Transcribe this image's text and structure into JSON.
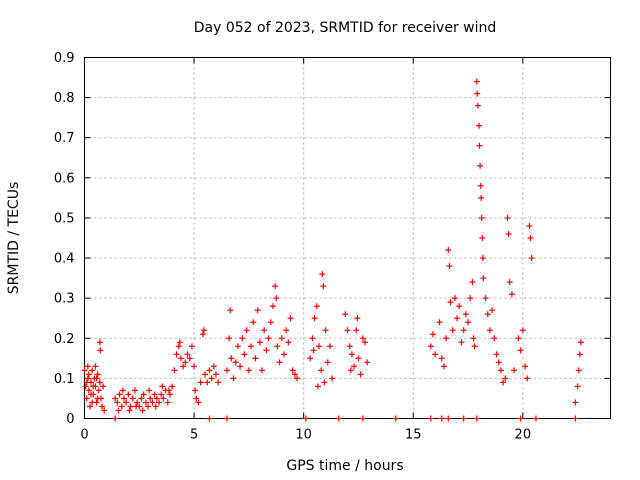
{
  "chart_data": {
    "type": "scatter",
    "title": "Day 052 of 2023, SRMTID for receiver wind",
    "xlabel": "GPS time / hours",
    "ylabel": "SRMTID / TECUs",
    "xlim": [
      0,
      24
    ],
    "ylim": [
      0,
      0.9
    ],
    "xticks": [
      0,
      5,
      10,
      15,
      20
    ],
    "xtick_labels": [
      "0",
      "5",
      "10",
      "15",
      "20"
    ],
    "yticks": [
      0,
      0.1,
      0.2,
      0.3,
      0.4,
      0.5,
      0.6,
      0.7,
      0.8,
      0.9
    ],
    "ytick_labels": [
      "0",
      "0.1",
      "0.2",
      "0.3",
      "0.4",
      "0.5",
      "0.6",
      "0.7",
      "0.8",
      "0.9"
    ],
    "grid": true,
    "marker": "+",
    "color": "#ff0000",
    "series": [
      {
        "name": "SRMTID",
        "points": [
          [
            0.0,
            0.12
          ],
          [
            0.05,
            0.08
          ],
          [
            0.1,
            0.05
          ],
          [
            0.15,
            0.1
          ],
          [
            0.2,
            0.07
          ],
          [
            0.25,
            0.03
          ],
          [
            0.3,
            0.09
          ],
          [
            0.35,
            0.12
          ],
          [
            0.4,
            0.06
          ],
          [
            0.45,
            0.1
          ],
          [
            0.5,
            0.08
          ],
          [
            0.55,
            0.04
          ],
          [
            0.6,
            0.11
          ],
          [
            0.65,
            0.07
          ],
          [
            0.7,
            0.19
          ],
          [
            0.72,
            0.17
          ],
          [
            0.75,
            0.05
          ],
          [
            0.8,
            0.03
          ],
          [
            0.85,
            0.08
          ],
          [
            0.9,
            0.02
          ],
          [
            0.1,
            0.09
          ],
          [
            0.2,
            0.11
          ],
          [
            0.3,
            0.06
          ],
          [
            0.4,
            0.08
          ],
          [
            0.5,
            0.13
          ],
          [
            0.6,
            0.05
          ],
          [
            0.7,
            0.09
          ],
          [
            0.15,
            0.13
          ],
          [
            0.35,
            0.04
          ],
          [
            0.55,
            0.1
          ],
          [
            1.4,
            0.05
          ],
          [
            1.5,
            0.04
          ],
          [
            1.6,
            0.06
          ],
          [
            1.7,
            0.03
          ],
          [
            1.8,
            0.05
          ],
          [
            1.9,
            0.04
          ],
          [
            2.0,
            0.06
          ],
          [
            2.1,
            0.03
          ],
          [
            2.2,
            0.05
          ],
          [
            2.3,
            0.07
          ],
          [
            2.4,
            0.04
          ],
          [
            2.5,
            0.03
          ],
          [
            2.6,
            0.05
          ],
          [
            2.7,
            0.06
          ],
          [
            2.8,
            0.04
          ],
          [
            2.9,
            0.03
          ],
          [
            3.0,
            0.05
          ],
          [
            3.1,
            0.04
          ],
          [
            3.2,
            0.06
          ],
          [
            3.3,
            0.05
          ],
          [
            3.4,
            0.04
          ],
          [
            3.5,
            0.06
          ],
          [
            3.6,
            0.05
          ],
          [
            3.7,
            0.07
          ],
          [
            3.8,
            0.04
          ],
          [
            3.9,
            0.06
          ],
          [
            1.55,
            0.02
          ],
          [
            1.75,
            0.07
          ],
          [
            2.05,
            0.02
          ],
          [
            2.35,
            0.03
          ],
          [
            2.65,
            0.02
          ],
          [
            2.95,
            0.07
          ],
          [
            3.25,
            0.03
          ],
          [
            3.55,
            0.08
          ],
          [
            3.85,
            0.07
          ],
          [
            4.0,
            0.08
          ],
          [
            4.1,
            0.12
          ],
          [
            4.2,
            0.16
          ],
          [
            4.3,
            0.18
          ],
          [
            4.35,
            0.19
          ],
          [
            4.4,
            0.15
          ],
          [
            4.5,
            0.13
          ],
          [
            4.6,
            0.14
          ],
          [
            4.7,
            0.16
          ],
          [
            4.8,
            0.15
          ],
          [
            4.9,
            0.18
          ],
          [
            5.0,
            0.13
          ],
          [
            5.05,
            0.07
          ],
          [
            5.1,
            0.05
          ],
          [
            5.2,
            0.04
          ],
          [
            5.3,
            0.09
          ],
          [
            5.4,
            0.21
          ],
          [
            5.45,
            0.22
          ],
          [
            5.5,
            0.11
          ],
          [
            5.6,
            0.09
          ],
          [
            5.7,
            0.12
          ],
          [
            5.8,
            0.1
          ],
          [
            5.9,
            0.13
          ],
          [
            6.0,
            0.11
          ],
          [
            6.1,
            0.09
          ],
          [
            6.5,
            0.12
          ],
          [
            6.6,
            0.2
          ],
          [
            6.65,
            0.27
          ],
          [
            6.7,
            0.15
          ],
          [
            6.8,
            0.1
          ],
          [
            6.9,
            0.14
          ],
          [
            7.0,
            0.18
          ],
          [
            7.1,
            0.13
          ],
          [
            7.2,
            0.2
          ],
          [
            7.3,
            0.16
          ],
          [
            7.4,
            0.22
          ],
          [
            7.5,
            0.12
          ],
          [
            7.6,
            0.18
          ],
          [
            7.7,
            0.24
          ],
          [
            7.8,
            0.15
          ],
          [
            7.9,
            0.27
          ],
          [
            8.0,
            0.19
          ],
          [
            8.1,
            0.12
          ],
          [
            8.2,
            0.22
          ],
          [
            8.3,
            0.17
          ],
          [
            8.4,
            0.2
          ],
          [
            8.5,
            0.24
          ],
          [
            8.6,
            0.28
          ],
          [
            8.7,
            0.33
          ],
          [
            8.75,
            0.3
          ],
          [
            8.8,
            0.18
          ],
          [
            8.9,
            0.14
          ],
          [
            9.0,
            0.2
          ],
          [
            9.1,
            0.16
          ],
          [
            9.2,
            0.22
          ],
          [
            9.3,
            0.19
          ],
          [
            9.4,
            0.25
          ],
          [
            9.5,
            0.12
          ],
          [
            9.6,
            0.11
          ],
          [
            9.7,
            0.1
          ],
          [
            10.3,
            0.15
          ],
          [
            10.4,
            0.2
          ],
          [
            10.5,
            0.25
          ],
          [
            10.6,
            0.28
          ],
          [
            10.7,
            0.18
          ],
          [
            10.8,
            0.12
          ],
          [
            10.85,
            0.36
          ],
          [
            10.9,
            0.33
          ],
          [
            10.95,
            0.09
          ],
          [
            11.0,
            0.22
          ],
          [
            11.1,
            0.14
          ],
          [
            11.2,
            0.18
          ],
          [
            11.3,
            0.1
          ],
          [
            10.45,
            0.17
          ],
          [
            10.65,
            0.08
          ],
          [
            11.9,
            0.26
          ],
          [
            12.0,
            0.22
          ],
          [
            12.1,
            0.18
          ],
          [
            12.2,
            0.16
          ],
          [
            12.3,
            0.13
          ],
          [
            12.4,
            0.22
          ],
          [
            12.5,
            0.15
          ],
          [
            12.6,
            0.11
          ],
          [
            12.7,
            0.2
          ],
          [
            12.8,
            0.19
          ],
          [
            12.9,
            0.14
          ],
          [
            12.45,
            0.25
          ],
          [
            12.15,
            0.12
          ],
          [
            15.8,
            0.18
          ],
          [
            15.9,
            0.21
          ],
          [
            16.0,
            0.16
          ],
          [
            16.2,
            0.24
          ],
          [
            16.3,
            0.15
          ],
          [
            16.4,
            0.13
          ],
          [
            16.5,
            0.2
          ],
          [
            16.6,
            0.42
          ],
          [
            16.65,
            0.38
          ],
          [
            16.7,
            0.29
          ],
          [
            16.8,
            0.22
          ],
          [
            16.9,
            0.3
          ],
          [
            17.0,
            0.25
          ],
          [
            17.1,
            0.28
          ],
          [
            17.2,
            0.19
          ],
          [
            17.3,
            0.22
          ],
          [
            17.4,
            0.26
          ],
          [
            17.5,
            0.24
          ],
          [
            17.6,
            0.3
          ],
          [
            17.7,
            0.34
          ],
          [
            17.75,
            0.2
          ],
          [
            17.8,
            0.18
          ],
          [
            17.9,
            0.84
          ],
          [
            17.92,
            0.81
          ],
          [
            17.95,
            0.78
          ],
          [
            18.0,
            0.73
          ],
          [
            18.02,
            0.68
          ],
          [
            18.05,
            0.63
          ],
          [
            18.08,
            0.58
          ],
          [
            18.1,
            0.55
          ],
          [
            18.12,
            0.5
          ],
          [
            18.15,
            0.45
          ],
          [
            18.18,
            0.4
          ],
          [
            18.2,
            0.35
          ],
          [
            18.3,
            0.3
          ],
          [
            18.4,
            0.26
          ],
          [
            18.5,
            0.22
          ],
          [
            18.6,
            0.27
          ],
          [
            18.7,
            0.2
          ],
          [
            18.8,
            0.16
          ],
          [
            18.9,
            0.14
          ],
          [
            19.0,
            0.12
          ],
          [
            19.1,
            0.09
          ],
          [
            19.2,
            0.1
          ],
          [
            19.3,
            0.5
          ],
          [
            19.35,
            0.46
          ],
          [
            19.4,
            0.34
          ],
          [
            19.5,
            0.31
          ],
          [
            19.6,
            0.12
          ],
          [
            19.8,
            0.2
          ],
          [
            19.9,
            0.17
          ],
          [
            20.0,
            0.22
          ],
          [
            20.1,
            0.13
          ],
          [
            20.2,
            0.1
          ],
          [
            20.3,
            0.48
          ],
          [
            20.35,
            0.45
          ],
          [
            20.4,
            0.4
          ],
          [
            22.4,
            0.04
          ],
          [
            22.5,
            0.08
          ],
          [
            22.55,
            0.12
          ],
          [
            22.6,
            0.16
          ],
          [
            22.65,
            0.19
          ],
          [
            1.4,
            0.0
          ],
          [
            5.7,
            0.0
          ],
          [
            6.5,
            0.0
          ],
          [
            10.1,
            0.0
          ],
          [
            11.6,
            0.0
          ],
          [
            12.7,
            0.0
          ],
          [
            14.2,
            0.0
          ],
          [
            15.8,
            0.0
          ],
          [
            16.3,
            0.0
          ],
          [
            16.6,
            0.0
          ],
          [
            17.3,
            0.0
          ],
          [
            17.9,
            0.0
          ],
          [
            19.9,
            0.0
          ],
          [
            20.6,
            0.0
          ],
          [
            22.4,
            0.0
          ]
        ]
      }
    ]
  }
}
